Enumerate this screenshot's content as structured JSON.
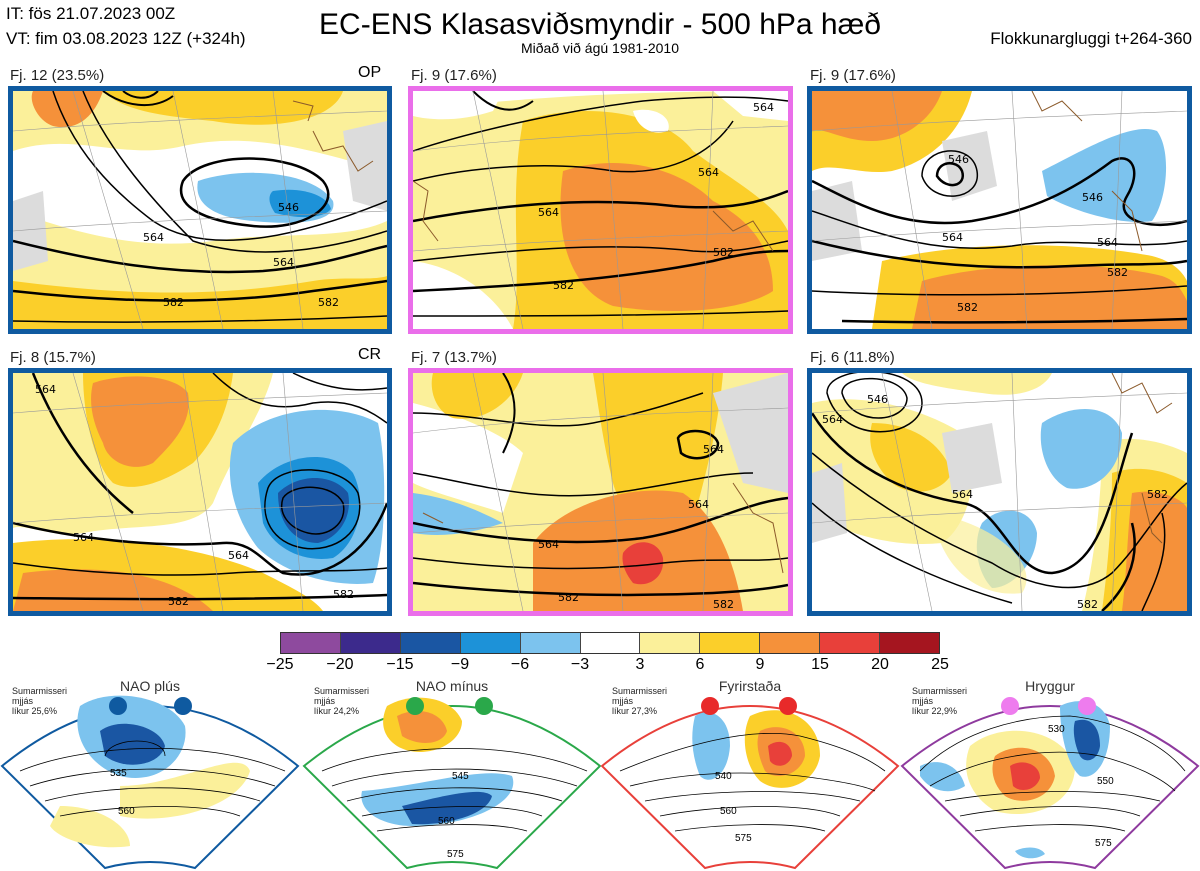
{
  "header": {
    "initial_time": "IT: fös 21.07.2023 00Z",
    "valid_time": "VT: fim 03.08.2023 12Z  (+324h)",
    "title": "EC-ENS Klasasviðsmyndir - 500 hPa hæð",
    "subtitle": "Miðað við ágú 1981-2010",
    "window": "Flokkunargluggi t+264-360"
  },
  "panels": [
    {
      "label": "Fj. 12 (23.5%)",
      "tag": "OP",
      "frame_color": "#0f5aa0",
      "contours": [
        "546",
        "564",
        "564",
        "582",
        "582"
      ]
    },
    {
      "label": "Fj. 9 (17.6%)",
      "tag": "",
      "frame_color": "#ea6eea",
      "contours": [
        "564",
        "564",
        "564",
        "582",
        "582"
      ]
    },
    {
      "label": "Fj. 9 (17.6%)",
      "tag": "",
      "frame_color": "#0f5aa0",
      "contours": [
        "546",
        "564",
        "546",
        "564",
        "582",
        "582"
      ]
    },
    {
      "label": "Fj. 8 (15.7%)",
      "tag": "CR",
      "frame_color": "#0f5aa0",
      "contours": [
        "564",
        "564",
        "564",
        "582",
        "582"
      ]
    },
    {
      "label": "Fj. 7 (13.7%)",
      "tag": "",
      "frame_color": "#ea6eea",
      "contours": [
        "564",
        "564",
        "564",
        "582",
        "582"
      ]
    },
    {
      "label": "Fj. 6 (11.8%)",
      "tag": "",
      "frame_color": "#0f5aa0",
      "contours": [
        "564",
        "546",
        "564",
        "582",
        "582"
      ]
    }
  ],
  "colorbar": {
    "colors": [
      "#8e4a9e",
      "#3c2a8c",
      "#1a56a3",
      "#1d92d8",
      "#7cc3ee",
      "#ffffff",
      "#fbf09a",
      "#fbcf2a",
      "#f5913a",
      "#e8403a",
      "#a5151f"
    ],
    "ticks": [
      "−25",
      "−20",
      "−15",
      "−9",
      "−6",
      "−3",
      "3",
      "6",
      "9",
      "15",
      "20",
      "25"
    ]
  },
  "regimes": [
    {
      "name": "NAO plús",
      "season": "Sumarmisseri",
      "smoothing": "mjjás",
      "probability": "líkur 25,6%",
      "color": "#0f5aa0",
      "dot_color": "#0f5aa0",
      "contours": [
        "535",
        "560"
      ]
    },
    {
      "name": "NAO mínus",
      "season": "Sumarmisseri",
      "smoothing": "mjjás",
      "probability": "líkur 24,2%",
      "color": "#2aa84a",
      "dot_color": "#2aa84a",
      "contours": [
        "545",
        "560",
        "575"
      ]
    },
    {
      "name": "Fyrirstaða",
      "season": "Sumarmisseri",
      "smoothing": "mjjás",
      "probability": "líkur 27,3%",
      "color": "#e8403a",
      "dot_color": "#e82a2a",
      "contours": [
        "540",
        "560",
        "575"
      ]
    },
    {
      "name": "Hryggur",
      "season": "Sumarmisseri",
      "smoothing": "mjjás",
      "probability": "líkur 22,9%",
      "color": "#8e3a9e",
      "dot_color": "#ee7cee",
      "contours": [
        "530",
        "550",
        "575"
      ]
    }
  ]
}
